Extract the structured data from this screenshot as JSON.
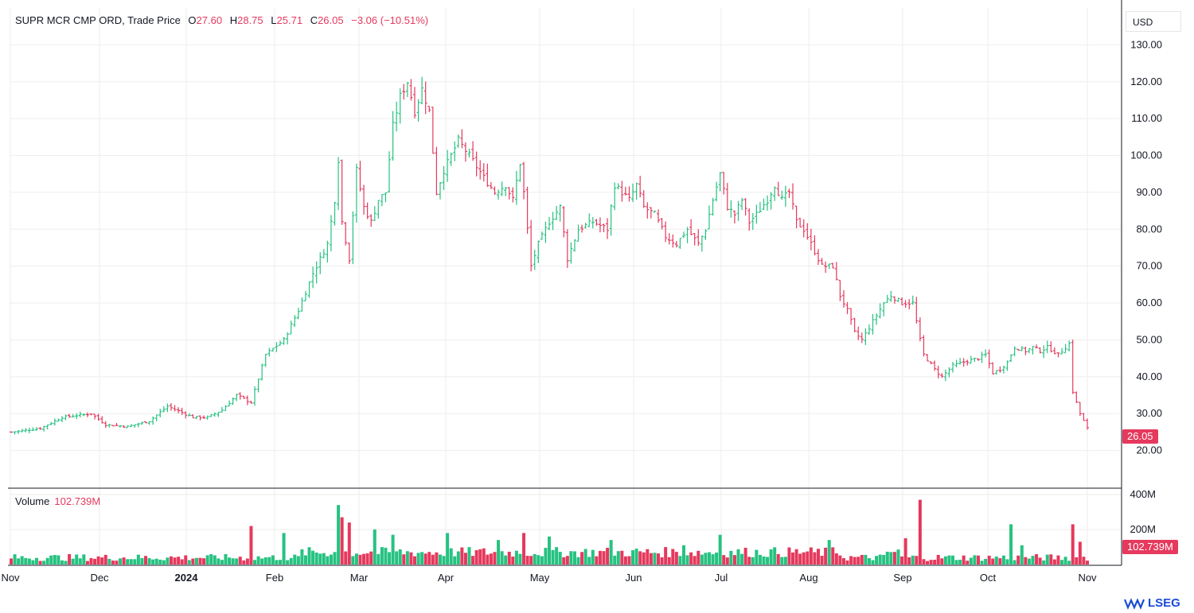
{
  "legend": {
    "title": "SUPR MCR CMP ORD, Trade Price",
    "open_label": "O",
    "open": "27.60",
    "high_label": "H",
    "high": "28.75",
    "low_label": "L",
    "low": "25.71",
    "close_label": "C",
    "close": "26.05",
    "change": "−3.06 (−10.51%)"
  },
  "volume_legend": {
    "label": "Volume",
    "value": "102.739M"
  },
  "currency": "USD",
  "last_price_tag": "26.05",
  "last_volume_tag": "102.739M",
  "logo_text": "LSEG",
  "colors": {
    "up": "#26c281",
    "down": "#e5395d",
    "grid": "#eeeeee",
    "axis": "#131722",
    "brand": "#1a4cd6"
  },
  "chart_data": {
    "type": "ohlc",
    "title": "SUPR MCR CMP ORD, Trade Price",
    "price_ylim": [
      10,
      140
    ],
    "price_ticks": [
      "130.00",
      "120.00",
      "110.00",
      "100.00",
      "90.00",
      "80.00",
      "70.00",
      "60.00",
      "50.00",
      "40.00",
      "30.00",
      "20.00"
    ],
    "volume_ticks": [
      "400M",
      "200M"
    ],
    "volume_ylim": [
      0,
      400
    ],
    "x_ticks": [
      "Nov",
      "Dec",
      "2024",
      "Feb",
      "Mar",
      "Apr",
      "May",
      "Jun",
      "Jul",
      "Aug",
      "Sep",
      "Oct",
      "Nov"
    ],
    "grid": true,
    "price_keyframes": [
      {
        "t": 0,
        "v": 25
      },
      {
        "t": 8,
        "v": 26
      },
      {
        "t": 14,
        "v": 29
      },
      {
        "t": 22,
        "v": 30
      },
      {
        "t": 26,
        "v": 27
      },
      {
        "t": 32,
        "v": 26.5
      },
      {
        "t": 38,
        "v": 28
      },
      {
        "t": 43,
        "v": 32
      },
      {
        "t": 50,
        "v": 29
      },
      {
        "t": 54,
        "v": 29
      },
      {
        "t": 58,
        "v": 31
      },
      {
        "t": 62,
        "v": 35
      },
      {
        "t": 66,
        "v": 33
      },
      {
        "t": 70,
        "v": 46
      },
      {
        "t": 75,
        "v": 50
      },
      {
        "t": 79,
        "v": 58
      },
      {
        "t": 83,
        "v": 68
      },
      {
        "t": 87,
        "v": 76
      },
      {
        "t": 89,
        "v": 88
      },
      {
        "t": 90,
        "v": 99
      },
      {
        "t": 91,
        "v": 82
      },
      {
        "t": 93,
        "v": 72
      },
      {
        "t": 95,
        "v": 96
      },
      {
        "t": 97,
        "v": 86
      },
      {
        "t": 99,
        "v": 82
      },
      {
        "t": 101,
        "v": 88
      },
      {
        "t": 103,
        "v": 90
      },
      {
        "t": 105,
        "v": 108
      },
      {
        "t": 107,
        "v": 116
      },
      {
        "t": 109,
        "v": 120
      },
      {
        "t": 111,
        "v": 112
      },
      {
        "t": 113,
        "v": 118
      },
      {
        "t": 115,
        "v": 112
      },
      {
        "t": 117,
        "v": 90
      },
      {
        "t": 119,
        "v": 96
      },
      {
        "t": 121,
        "v": 100
      },
      {
        "t": 123,
        "v": 104
      },
      {
        "t": 126,
        "v": 100
      },
      {
        "t": 130,
        "v": 94
      },
      {
        "t": 133,
        "v": 90
      },
      {
        "t": 136,
        "v": 92
      },
      {
        "t": 138,
        "v": 88
      },
      {
        "t": 140,
        "v": 98
      },
      {
        "t": 141,
        "v": 90
      },
      {
        "t": 143,
        "v": 70
      },
      {
        "t": 145,
        "v": 76
      },
      {
        "t": 148,
        "v": 82
      },
      {
        "t": 151,
        "v": 86
      },
      {
        "t": 153,
        "v": 72
      },
      {
        "t": 156,
        "v": 80
      },
      {
        "t": 160,
        "v": 82
      },
      {
        "t": 164,
        "v": 80
      },
      {
        "t": 166,
        "v": 92
      },
      {
        "t": 170,
        "v": 88
      },
      {
        "t": 172,
        "v": 92
      },
      {
        "t": 174,
        "v": 86
      },
      {
        "t": 177,
        "v": 84
      },
      {
        "t": 180,
        "v": 78
      },
      {
        "t": 183,
        "v": 76
      },
      {
        "t": 186,
        "v": 80
      },
      {
        "t": 189,
        "v": 76
      },
      {
        "t": 191,
        "v": 80
      },
      {
        "t": 193,
        "v": 88
      },
      {
        "t": 195,
        "v": 95
      },
      {
        "t": 197,
        "v": 86
      },
      {
        "t": 199,
        "v": 84
      },
      {
        "t": 201,
        "v": 88
      },
      {
        "t": 203,
        "v": 82
      },
      {
        "t": 205,
        "v": 84
      },
      {
        "t": 208,
        "v": 88
      },
      {
        "t": 210,
        "v": 92
      },
      {
        "t": 212,
        "v": 88
      },
      {
        "t": 214,
        "v": 90
      },
      {
        "t": 216,
        "v": 82
      },
      {
        "t": 218,
        "v": 80
      },
      {
        "t": 220,
        "v": 76
      },
      {
        "t": 223,
        "v": 70
      },
      {
        "t": 226,
        "v": 70
      },
      {
        "t": 228,
        "v": 62
      },
      {
        "t": 230,
        "v": 58
      },
      {
        "t": 232,
        "v": 52
      },
      {
        "t": 234,
        "v": 50
      },
      {
        "t": 237,
        "v": 55
      },
      {
        "t": 240,
        "v": 60
      },
      {
        "t": 242,
        "v": 62
      },
      {
        "t": 245,
        "v": 60
      },
      {
        "t": 248,
        "v": 60
      },
      {
        "t": 250,
        "v": 50
      },
      {
        "t": 251,
        "v": 46
      },
      {
        "t": 254,
        "v": 42
      },
      {
        "t": 256,
        "v": 40
      },
      {
        "t": 259,
        "v": 43
      },
      {
        "t": 262,
        "v": 44
      },
      {
        "t": 266,
        "v": 45
      },
      {
        "t": 268,
        "v": 46
      },
      {
        "t": 270,
        "v": 41
      },
      {
        "t": 272,
        "v": 42
      },
      {
        "t": 274,
        "v": 44
      },
      {
        "t": 276,
        "v": 48
      },
      {
        "t": 279,
        "v": 47
      },
      {
        "t": 281,
        "v": 48
      },
      {
        "t": 283,
        "v": 47
      },
      {
        "t": 285,
        "v": 48
      },
      {
        "t": 288,
        "v": 46
      },
      {
        "t": 291,
        "v": 49
      },
      {
        "t": 292,
        "v": 36
      },
      {
        "t": 294,
        "v": 30
      },
      {
        "t": 296,
        "v": 26
      }
    ],
    "volume_spikes": [
      {
        "t": 66,
        "v": 220
      },
      {
        "t": 75,
        "v": 180
      },
      {
        "t": 90,
        "v": 340
      },
      {
        "t": 91,
        "v": 270
      },
      {
        "t": 93,
        "v": 240
      },
      {
        "t": 100,
        "v": 200
      },
      {
        "t": 105,
        "v": 170
      },
      {
        "t": 120,
        "v": 180
      },
      {
        "t": 134,
        "v": 140
      },
      {
        "t": 141,
        "v": 180
      },
      {
        "t": 148,
        "v": 160
      },
      {
        "t": 165,
        "v": 140
      },
      {
        "t": 185,
        "v": 110
      },
      {
        "t": 195,
        "v": 170
      },
      {
        "t": 225,
        "v": 140
      },
      {
        "t": 246,
        "v": 150
      },
      {
        "t": 250,
        "v": 370
      },
      {
        "t": 275,
        "v": 230
      },
      {
        "t": 278,
        "v": 110
      },
      {
        "t": 292,
        "v": 230
      },
      {
        "t": 294,
        "v": 130
      }
    ]
  }
}
